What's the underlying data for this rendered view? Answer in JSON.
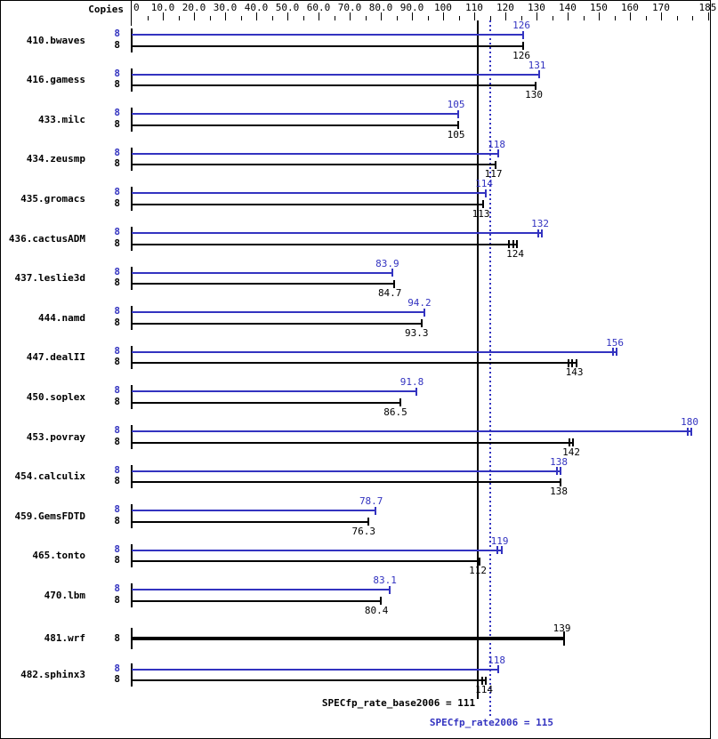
{
  "header": {
    "copies_label": "Copies"
  },
  "axis": {
    "min": 0,
    "max": 185,
    "minor_tick_step": 5,
    "labeled_ticks": [
      {
        "value": 0,
        "label": "0"
      },
      {
        "value": 10,
        "label": "10.0"
      },
      {
        "value": 20,
        "label": "20.0"
      },
      {
        "value": 30,
        "label": "30.0"
      },
      {
        "value": 40,
        "label": "40.0"
      },
      {
        "value": 50,
        "label": "50.0"
      },
      {
        "value": 60,
        "label": "60.0"
      },
      {
        "value": 70,
        "label": "70.0"
      },
      {
        "value": 80,
        "label": "80.0"
      },
      {
        "value": 90,
        "label": "90.0"
      },
      {
        "value": 100,
        "label": "100"
      },
      {
        "value": 110,
        "label": "110"
      },
      {
        "value": 120,
        "label": "120"
      },
      {
        "value": 130,
        "label": "130"
      },
      {
        "value": 140,
        "label": "140"
      },
      {
        "value": 150,
        "label": "150"
      },
      {
        "value": 160,
        "label": "160"
      },
      {
        "value": 170,
        "label": "170"
      },
      {
        "value": 185,
        "label": "185"
      }
    ]
  },
  "colors": {
    "peak": "#3333c0",
    "base": "#000000",
    "background": "#ffffff"
  },
  "reference_lines": {
    "base": {
      "value": 111,
      "style": "solid",
      "color": "#000000"
    },
    "peak": {
      "value": 115,
      "style": "dotted",
      "color": "#3333c0"
    }
  },
  "footer": {
    "base_label": "SPECfp_rate_base2006 = 111",
    "peak_label": "SPECfp_rate2006 = 115"
  },
  "benchmarks": [
    {
      "name": "410.bwaves",
      "copies": "8",
      "peak": "126",
      "base": "126",
      "peak_marks": 1,
      "base_marks": 1
    },
    {
      "name": "416.gamess",
      "copies": "8",
      "peak": "131",
      "base": "130",
      "peak_marks": 1,
      "base_marks": 1
    },
    {
      "name": "433.milc",
      "copies": "8",
      "peak": "105",
      "base": "105",
      "peak_marks": 1,
      "base_marks": 1
    },
    {
      "name": "434.zeusmp",
      "copies": "8",
      "peak": "118",
      "base": "117",
      "peak_marks": 1,
      "base_marks": 1
    },
    {
      "name": "435.gromacs",
      "copies": "8",
      "peak": "114",
      "base": "113",
      "peak_marks": 1,
      "base_marks": 1
    },
    {
      "name": "436.cactusADM",
      "copies": "8",
      "peak": "132",
      "base": "124",
      "peak_marks": 2,
      "base_marks": 3
    },
    {
      "name": "437.leslie3d",
      "copies": "8",
      "peak": "83.9",
      "base": "84.7",
      "peak_marks": 1,
      "base_marks": 1
    },
    {
      "name": "444.namd",
      "copies": "8",
      "peak": "94.2",
      "base": "93.3",
      "peak_marks": 1,
      "base_marks": 1
    },
    {
      "name": "447.dealII",
      "copies": "8",
      "peak": "156",
      "base": "143",
      "peak_marks": 2,
      "base_marks": 3
    },
    {
      "name": "450.soplex",
      "copies": "8",
      "peak": "91.8",
      "base": "86.5",
      "peak_marks": 1,
      "base_marks": 1
    },
    {
      "name": "453.povray",
      "copies": "8",
      "peak": "180",
      "base": "142",
      "peak_marks": 2,
      "base_marks": 2
    },
    {
      "name": "454.calculix",
      "copies": "8",
      "peak": "138",
      "base": "138",
      "peak_marks": 2,
      "base_marks": 1
    },
    {
      "name": "459.GemsFDTD",
      "copies": "8",
      "peak": "78.7",
      "base": "76.3",
      "peak_marks": 1,
      "base_marks": 1
    },
    {
      "name": "465.tonto",
      "copies": "8",
      "peak": "119",
      "base": "112",
      "peak_marks": 2,
      "base_marks": 1
    },
    {
      "name": "470.lbm",
      "copies": "8",
      "peak": "83.1",
      "base": "80.4",
      "peak_marks": 1,
      "base_marks": 1
    },
    {
      "name": "481.wrf",
      "copies": "8",
      "peak": null,
      "base": "139",
      "peak_marks": 0,
      "base_marks": 1,
      "base_only": true
    },
    {
      "name": "482.sphinx3",
      "copies": "8",
      "peak": "118",
      "base": "114",
      "peak_marks": 1,
      "base_marks": 2
    }
  ],
  "chart_data": {
    "type": "bar",
    "orientation": "horizontal",
    "title": "",
    "xlabel": "",
    "ylabel": "Copies",
    "xlim": [
      0,
      185
    ],
    "grid": false,
    "categories": [
      "410.bwaves",
      "416.gamess",
      "433.milc",
      "434.zeusmp",
      "435.gromacs",
      "436.cactusADM",
      "437.leslie3d",
      "444.namd",
      "447.dealII",
      "450.soplex",
      "453.povray",
      "454.calculix",
      "459.GemsFDTD",
      "465.tonto",
      "470.lbm",
      "481.wrf",
      "482.sphinx3"
    ],
    "copies_per_benchmark": [
      8,
      8,
      8,
      8,
      8,
      8,
      8,
      8,
      8,
      8,
      8,
      8,
      8,
      8,
      8,
      8,
      8
    ],
    "series": [
      {
        "name": "SPECfp_rate2006 (peak)",
        "color": "#3333c0",
        "values": [
          126,
          131,
          105,
          118,
          114,
          132,
          83.9,
          94.2,
          156,
          91.8,
          180,
          138,
          78.7,
          119,
          83.1,
          null,
          118
        ]
      },
      {
        "name": "SPECfp_rate_base2006 (base)",
        "color": "#000000",
        "values": [
          126,
          130,
          105,
          117,
          113,
          124,
          84.7,
          93.3,
          143,
          86.5,
          142,
          138,
          76.3,
          112,
          80.4,
          139,
          114
        ]
      }
    ],
    "reference_lines": [
      {
        "label": "SPECfp_rate_base2006 = 111",
        "value": 111,
        "style": "solid",
        "color": "#000000"
      },
      {
        "label": "SPECfp_rate2006 = 115",
        "value": 115,
        "style": "dotted",
        "color": "#3333c0"
      }
    ]
  }
}
